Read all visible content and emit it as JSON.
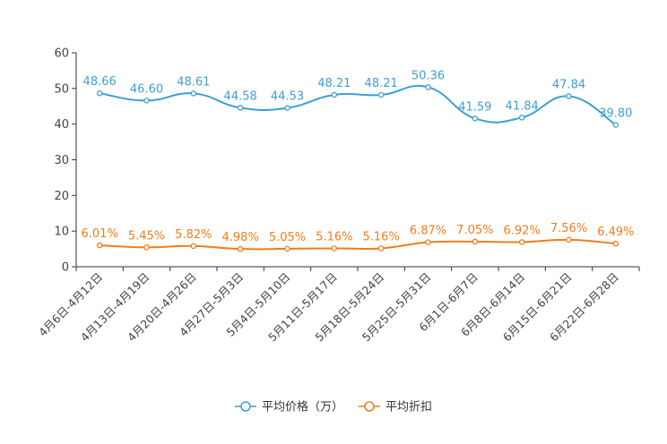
{
  "chart_data": {
    "type": "line",
    "title": "",
    "xlabel": "",
    "ylabel": "",
    "ylim": [
      0,
      60
    ],
    "yticks": [
      0,
      10,
      20,
      30,
      40,
      50,
      60
    ],
    "grid": false,
    "legend_position": "bottom-center",
    "categories": [
      "4月6日-4月12日",
      "4月13日-4月19日",
      "4月20日-4月26日",
      "4月27日-5月3日",
      "5月4日-5月10日",
      "5月11日-5月17日",
      "5月18日-5月24日",
      "5月25日-5月31日",
      "6月1日-6月7日",
      "6月8日-6月14日",
      "6月15日-6月21日",
      "6月22日-6月28日"
    ],
    "series": [
      {
        "name": "平均价格（万）",
        "color": "#3e9fd1",
        "values": [
          48.66,
          46.6,
          48.61,
          44.58,
          44.53,
          48.21,
          48.21,
          50.36,
          41.59,
          41.84,
          47.84,
          39.8
        ],
        "labels": [
          "48.66",
          "46.60",
          "48.61",
          "44.58",
          "44.53",
          "48.21",
          "48.21",
          "50.36",
          "41.59",
          "41.84",
          "47.84",
          "39.80"
        ]
      },
      {
        "name": "平均折扣",
        "color": "#f07c1c",
        "values": [
          6.01,
          5.45,
          5.82,
          4.98,
          5.05,
          5.16,
          5.16,
          6.87,
          7.05,
          6.92,
          7.56,
          6.49
        ],
        "labels": [
          "6.01%",
          "5.45%",
          "5.82%",
          "4.98%",
          "5.05%",
          "5.16%",
          "5.16%",
          "6.87%",
          "7.05%",
          "6.92%",
          "7.56%",
          "6.49%"
        ]
      }
    ]
  }
}
